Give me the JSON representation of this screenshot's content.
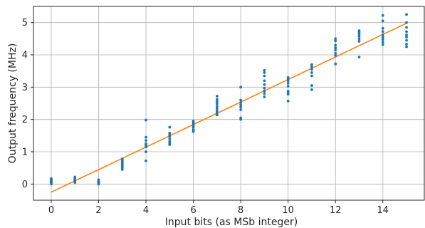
{
  "chart_data": {
    "type": "scatter",
    "title": "",
    "xlabel": "Input bits (as MSb integer)",
    "ylabel": "Output frequency (MHz)",
    "xlim": [
      -0.75,
      15.75
    ],
    "ylim": [
      -0.5,
      5.5
    ],
    "xticks": [
      0,
      2,
      4,
      6,
      8,
      10,
      12,
      14
    ],
    "yticks": [
      0,
      1,
      2,
      3,
      4,
      5
    ],
    "grid": true,
    "legend": "none",
    "colors": {
      "points": "#1f77b4",
      "fit_line": "#ff7f0e"
    },
    "series": [
      {
        "kind": "points",
        "points": [
          [
            0,
            0.17
          ],
          [
            0,
            0.14
          ],
          [
            0,
            0.12
          ],
          [
            0,
            0.1
          ],
          [
            0,
            0.08
          ],
          [
            0,
            0.05
          ],
          [
            0,
            0.03
          ],
          [
            0,
            0.0
          ],
          [
            1,
            0.22
          ],
          [
            1,
            0.17
          ],
          [
            1,
            0.12
          ],
          [
            1,
            0.08
          ],
          [
            1,
            0.05
          ],
          [
            2,
            0.13
          ],
          [
            2,
            0.1
          ],
          [
            2,
            0.07
          ],
          [
            2,
            0.05
          ],
          [
            2,
            0.03
          ],
          [
            2,
            0.0
          ],
          [
            3,
            0.78
          ],
          [
            3,
            0.72
          ],
          [
            3,
            0.68
          ],
          [
            3,
            0.63
          ],
          [
            3,
            0.58
          ],
          [
            3,
            0.55
          ],
          [
            3,
            0.5
          ],
          [
            3,
            0.45
          ],
          [
            4,
            1.98
          ],
          [
            4,
            1.45
          ],
          [
            4,
            1.35
          ],
          [
            4,
            1.25
          ],
          [
            4,
            1.2
          ],
          [
            4,
            1.15
          ],
          [
            4,
            1.0
          ],
          [
            4,
            0.72
          ],
          [
            5,
            1.76
          ],
          [
            5,
            1.58
          ],
          [
            5,
            1.52
          ],
          [
            5,
            1.48
          ],
          [
            5,
            1.4
          ],
          [
            5,
            1.32
          ],
          [
            5,
            1.27
          ],
          [
            5,
            1.22
          ],
          [
            6,
            1.95
          ],
          [
            6,
            1.9
          ],
          [
            6,
            1.85
          ],
          [
            6,
            1.8
          ],
          [
            6,
            1.75
          ],
          [
            6,
            1.68
          ],
          [
            6,
            1.63
          ],
          [
            7,
            2.72
          ],
          [
            7,
            2.62
          ],
          [
            7,
            2.55
          ],
          [
            7,
            2.48
          ],
          [
            7,
            2.4
          ],
          [
            7,
            2.33
          ],
          [
            7,
            2.26
          ],
          [
            7,
            2.2
          ],
          [
            7,
            2.14
          ],
          [
            8,
            3.0
          ],
          [
            8,
            2.6
          ],
          [
            8,
            2.52
          ],
          [
            8,
            2.45
          ],
          [
            8,
            2.38
          ],
          [
            8,
            2.3
          ],
          [
            8,
            2.05
          ],
          [
            8,
            2.0
          ],
          [
            9,
            3.52
          ],
          [
            9,
            3.45
          ],
          [
            9,
            3.35
          ],
          [
            9,
            3.2
          ],
          [
            9,
            3.08
          ],
          [
            9,
            2.97
          ],
          [
            9,
            2.88
          ],
          [
            9,
            2.8
          ],
          [
            9,
            2.7
          ],
          [
            10,
            3.3
          ],
          [
            10,
            3.25
          ],
          [
            10,
            3.2
          ],
          [
            10,
            3.12
          ],
          [
            10,
            3.03
          ],
          [
            10,
            2.88
          ],
          [
            10,
            2.82
          ],
          [
            10,
            2.78
          ],
          [
            10,
            2.57
          ],
          [
            11,
            3.7
          ],
          [
            11,
            3.63
          ],
          [
            11,
            3.55
          ],
          [
            11,
            3.45
          ],
          [
            11,
            3.35
          ],
          [
            11,
            3.05
          ],
          [
            11,
            2.92
          ],
          [
            12,
            4.5
          ],
          [
            12,
            4.43
          ],
          [
            12,
            4.3
          ],
          [
            12,
            4.22
          ],
          [
            12,
            4.15
          ],
          [
            12,
            4.05
          ],
          [
            12,
            3.98
          ],
          [
            12,
            3.72
          ],
          [
            13,
            4.75
          ],
          [
            13,
            4.7
          ],
          [
            13,
            4.65
          ],
          [
            13,
            4.58
          ],
          [
            13,
            4.5
          ],
          [
            13,
            4.42
          ],
          [
            13,
            3.93
          ],
          [
            14,
            5.22
          ],
          [
            14,
            5.05
          ],
          [
            14,
            4.82
          ],
          [
            14,
            4.72
          ],
          [
            14,
            4.62
          ],
          [
            14,
            4.55
          ],
          [
            14,
            4.48
          ],
          [
            14,
            4.4
          ],
          [
            14,
            4.32
          ],
          [
            15,
            5.25
          ],
          [
            15,
            5.0
          ],
          [
            15,
            4.85
          ],
          [
            15,
            4.72
          ],
          [
            15,
            4.62
          ],
          [
            15,
            4.55
          ],
          [
            15,
            4.45
          ],
          [
            15,
            4.33
          ],
          [
            15,
            4.25
          ]
        ]
      },
      {
        "kind": "line",
        "points": [
          [
            0,
            -0.25
          ],
          [
            15,
            4.98
          ]
        ]
      }
    ]
  }
}
